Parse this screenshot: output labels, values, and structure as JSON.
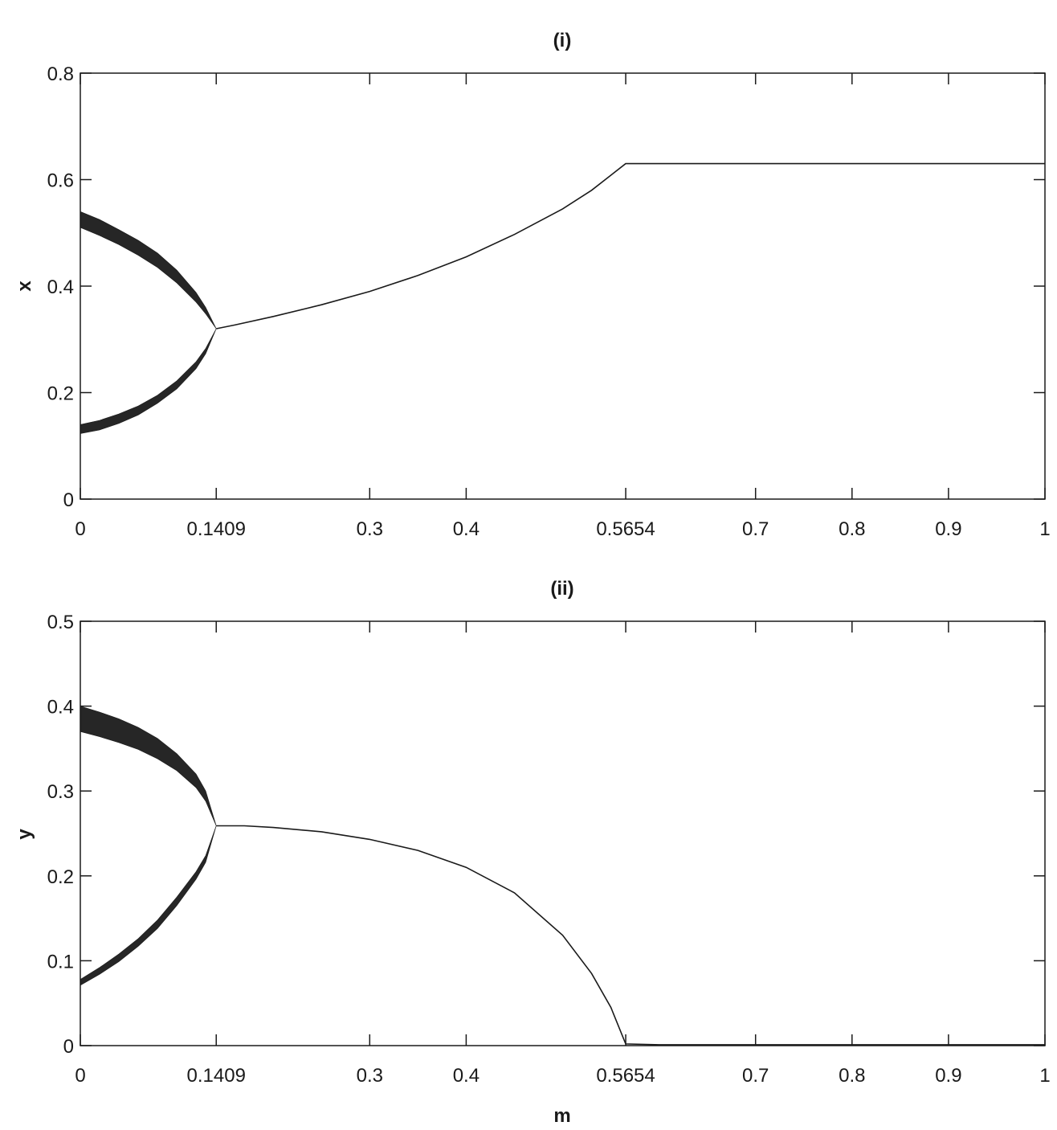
{
  "chart_data": [
    {
      "type": "scatter",
      "title": "(i)",
      "xlabel": "",
      "ylabel": "x",
      "xlim": [
        0,
        1
      ],
      "ylim": [
        0,
        0.8
      ],
      "xticks": [
        0,
        0.1409,
        0.3,
        0.4,
        0.5654,
        0.7,
        0.8,
        0.9,
        1
      ],
      "xtick_labels": [
        "0",
        "0.1409",
        "0.3",
        "0.4",
        "0.5654",
        "0.7",
        "0.8",
        "0.9",
        "1"
      ],
      "yticks": [
        0,
        0.2,
        0.4,
        0.6,
        0.8
      ],
      "ytick_labels": [
        "0",
        "0.2",
        "0.4",
        "0.6",
        "0.8"
      ],
      "grid": false,
      "series": [
        {
          "kind": "band",
          "upper": [
            [
              0,
              0.54
            ],
            [
              0.02,
              0.525
            ],
            [
              0.04,
              0.506
            ],
            [
              0.06,
              0.486
            ],
            [
              0.08,
              0.462
            ],
            [
              0.1,
              0.43
            ],
            [
              0.12,
              0.388
            ],
            [
              0.13,
              0.36
            ],
            [
              0.1409,
              0.32
            ]
          ],
          "lower": [
            [
              0,
              0.51
            ],
            [
              0.02,
              0.495
            ],
            [
              0.04,
              0.478
            ],
            [
              0.06,
              0.458
            ],
            [
              0.08,
              0.435
            ],
            [
              0.1,
              0.406
            ],
            [
              0.12,
              0.37
            ],
            [
              0.13,
              0.348
            ],
            [
              0.1409,
              0.32
            ]
          ]
        },
        {
          "kind": "band",
          "upper": [
            [
              0,
              0.14
            ],
            [
              0.02,
              0.148
            ],
            [
              0.04,
              0.16
            ],
            [
              0.06,
              0.175
            ],
            [
              0.08,
              0.195
            ],
            [
              0.1,
              0.222
            ],
            [
              0.12,
              0.258
            ],
            [
              0.13,
              0.283
            ],
            [
              0.1409,
              0.32
            ]
          ],
          "lower": [
            [
              0,
              0.123
            ],
            [
              0.02,
              0.13
            ],
            [
              0.04,
              0.142
            ],
            [
              0.06,
              0.158
            ],
            [
              0.08,
              0.18
            ],
            [
              0.1,
              0.207
            ],
            [
              0.12,
              0.245
            ],
            [
              0.13,
              0.273
            ],
            [
              0.1409,
              0.32
            ]
          ]
        },
        {
          "kind": "line",
          "points": [
            [
              0.1409,
              0.32
            ],
            [
              0.16,
              0.327
            ],
            [
              0.2,
              0.343
            ],
            [
              0.25,
              0.365
            ],
            [
              0.3,
              0.39
            ],
            [
              0.35,
              0.42
            ],
            [
              0.4,
              0.455
            ],
            [
              0.45,
              0.497
            ],
            [
              0.5,
              0.545
            ],
            [
              0.53,
              0.58
            ],
            [
              0.5654,
              0.63
            ],
            [
              0.6,
              0.63
            ],
            [
              0.7,
              0.63
            ],
            [
              0.8,
              0.63
            ],
            [
              0.9,
              0.63
            ],
            [
              1.0,
              0.63
            ]
          ]
        }
      ]
    },
    {
      "type": "scatter",
      "title": "(ii)",
      "xlabel": "m",
      "ylabel": "y",
      "xlim": [
        0,
        1
      ],
      "ylim": [
        0,
        0.5
      ],
      "xticks": [
        0,
        0.1409,
        0.3,
        0.4,
        0.5654,
        0.7,
        0.8,
        0.9,
        1
      ],
      "xtick_labels": [
        "0",
        "0.1409",
        "0.3",
        "0.4",
        "0.5654",
        "0.7",
        "0.8",
        "0.9",
        "1"
      ],
      "yticks": [
        0,
        0.1,
        0.2,
        0.3,
        0.4,
        0.5
      ],
      "ytick_labels": [
        "0",
        "0.1",
        "0.2",
        "0.3",
        "0.4",
        "0.5"
      ],
      "grid": false,
      "series": [
        {
          "kind": "band",
          "upper": [
            [
              0,
              0.4
            ],
            [
              0.02,
              0.393
            ],
            [
              0.04,
              0.385
            ],
            [
              0.06,
              0.375
            ],
            [
              0.08,
              0.362
            ],
            [
              0.1,
              0.344
            ],
            [
              0.12,
              0.32
            ],
            [
              0.13,
              0.3
            ],
            [
              0.1409,
              0.259
            ]
          ],
          "lower": [
            [
              0,
              0.37
            ],
            [
              0.02,
              0.364
            ],
            [
              0.04,
              0.357
            ],
            [
              0.06,
              0.349
            ],
            [
              0.08,
              0.338
            ],
            [
              0.1,
              0.324
            ],
            [
              0.12,
              0.304
            ],
            [
              0.13,
              0.288
            ],
            [
              0.1409,
              0.259
            ]
          ]
        },
        {
          "kind": "band",
          "upper": [
            [
              0,
              0.078
            ],
            [
              0.02,
              0.092
            ],
            [
              0.04,
              0.108
            ],
            [
              0.06,
              0.126
            ],
            [
              0.08,
              0.148
            ],
            [
              0.1,
              0.175
            ],
            [
              0.12,
              0.205
            ],
            [
              0.13,
              0.224
            ],
            [
              0.1409,
              0.259
            ]
          ],
          "lower": [
            [
              0,
              0.071
            ],
            [
              0.02,
              0.084
            ],
            [
              0.04,
              0.099
            ],
            [
              0.06,
              0.117
            ],
            [
              0.08,
              0.138
            ],
            [
              0.1,
              0.165
            ],
            [
              0.12,
              0.196
            ],
            [
              0.13,
              0.216
            ],
            [
              0.1409,
              0.259
            ]
          ]
        },
        {
          "kind": "line",
          "points": [
            [
              0.1409,
              0.259
            ],
            [
              0.17,
              0.259
            ],
            [
              0.2,
              0.257
            ],
            [
              0.25,
              0.252
            ],
            [
              0.3,
              0.243
            ],
            [
              0.35,
              0.23
            ],
            [
              0.4,
              0.21
            ],
            [
              0.45,
              0.18
            ],
            [
              0.5,
              0.13
            ],
            [
              0.53,
              0.085
            ],
            [
              0.55,
              0.045
            ],
            [
              0.5654,
              0.002
            ],
            [
              0.6,
              0.001
            ],
            [
              0.7,
              0.001
            ],
            [
              0.8,
              0.001
            ],
            [
              0.9,
              0.001
            ],
            [
              1.0,
              0.001
            ]
          ]
        }
      ]
    }
  ]
}
